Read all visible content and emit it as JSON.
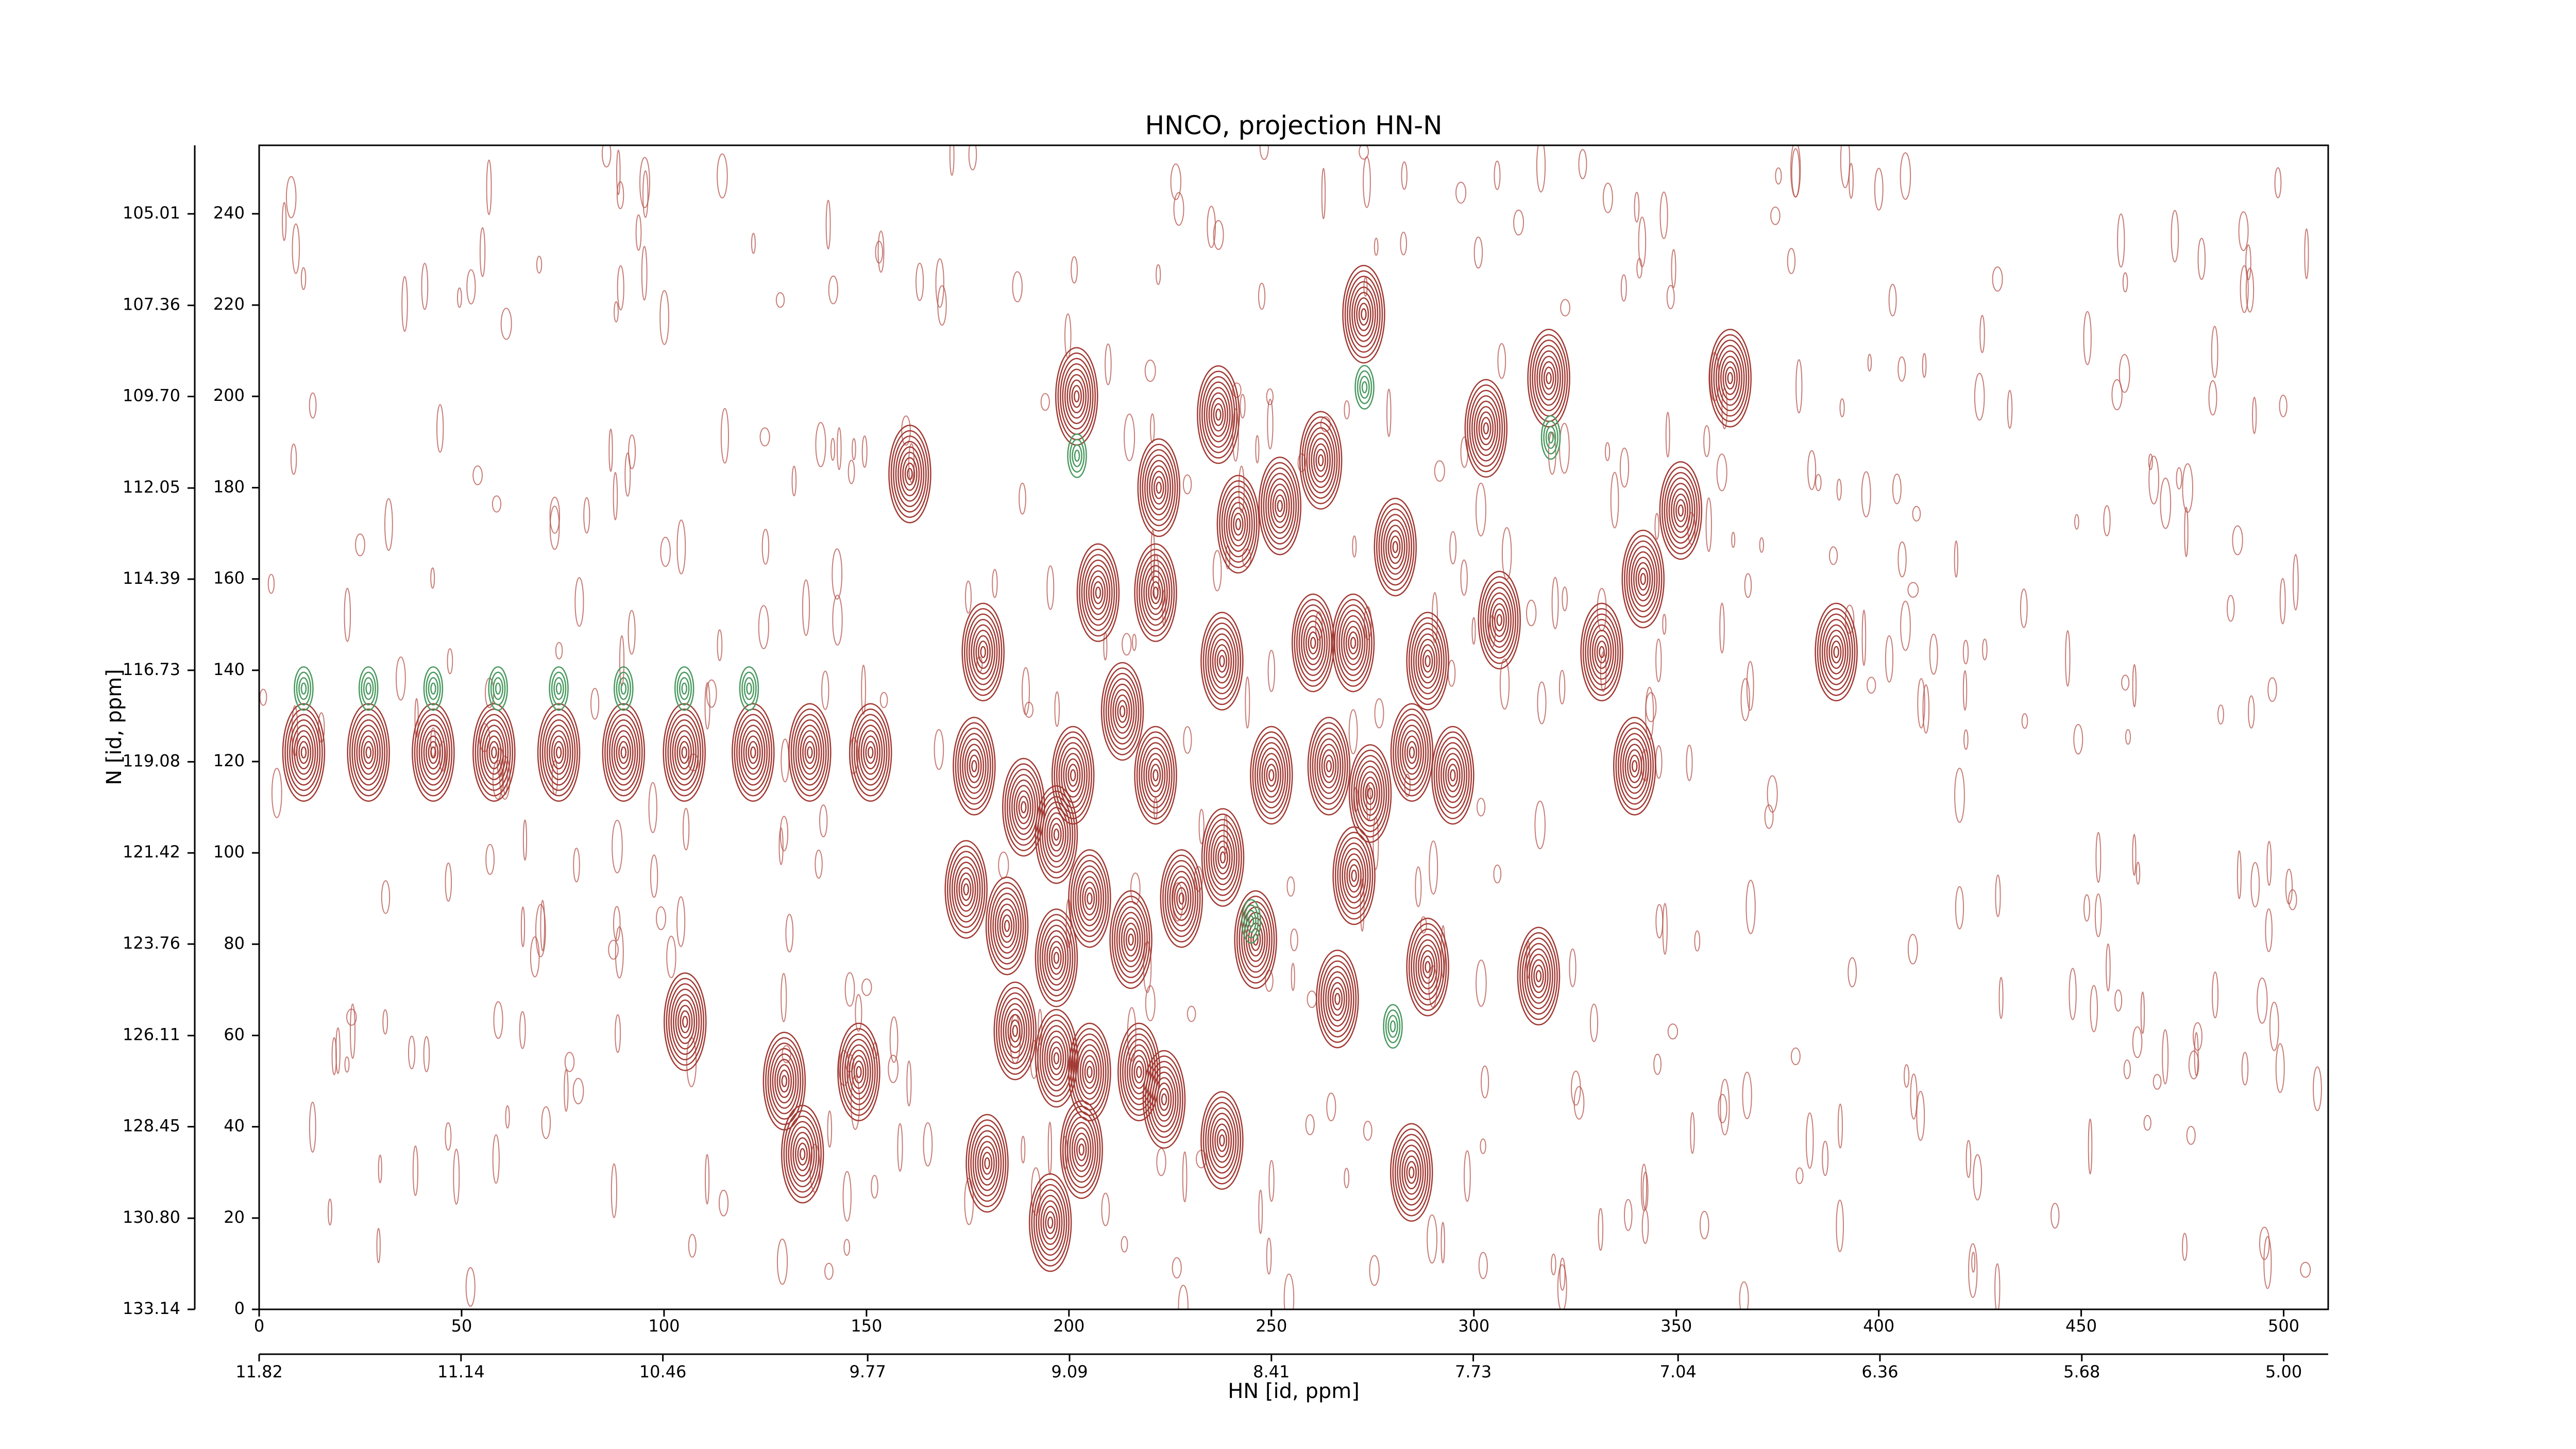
{
  "chart_data": {
    "type": "contour",
    "title": "HNCO, projection HN-N",
    "xlabel": "HN [id, ppm]",
    "ylabel": "N [id, ppm]",
    "xlim": [
      0,
      511
    ],
    "ylim": [
      0,
      255
    ],
    "xticks": [
      0,
      50,
      100,
      150,
      200,
      250,
      300,
      350,
      400,
      450,
      500
    ],
    "yticks": [
      0,
      20,
      40,
      60,
      80,
      100,
      120,
      140,
      160,
      180,
      200,
      220,
      240
    ],
    "x2lim": [
      11.82,
      4.85
    ],
    "x2ticks": [
      11.82,
      11.14,
      10.46,
      9.77,
      9.09,
      8.41,
      7.73,
      7.04,
      6.36,
      5.68,
      {
        "value": 5,
        "label": "5.00"
      }
    ],
    "y2lim": [
      133.14,
      103.25
    ],
    "y2ticks": [
      133.14,
      {
        "value": 130.8,
        "label": "130.80"
      },
      128.45,
      126.11,
      123.76,
      121.42,
      119.08,
      116.73,
      114.39,
      112.05,
      {
        "value": 109.7,
        "label": "109.70"
      },
      107.36,
      105.01
    ],
    "series": [
      {
        "color": "#a23a33",
        "x": [
          160.7,
          178.8,
          201.9,
          236.9,
          222.2,
          272.8,
          262.2,
          252.1,
          241.8,
          207.2,
          221.4,
          280.6,
          303,
          318.5,
          306.3,
          363.3,
          351.1,
          341.8,
          331.6,
          389.5,
          237.8,
          260.3,
          270.2,
          288.6,
          176.6,
          188.8,
          201,
          213.2,
          221.4,
          250,
          264.2,
          274.4,
          284.7,
          294.8,
          339.7,
          174.6,
          184.7,
          196.9,
          205.1,
          227.8,
          238,
          246.1,
          270.4,
          196.9,
          215.3,
          288.6,
          316,
          266.3,
          186.7,
          196.9,
          205.1,
          217.3,
          223.5,
          105.2,
          129.7,
          148.1,
          134.2,
          179.8,
          203.1,
          237.8,
          284.6,
          195.4,
          11,
          27,
          43,
          58,
          74,
          90,
          105,
          122,
          136,
          151
        ],
        "values": [
          183,
          144,
          200,
          196,
          180,
          218,
          186,
          176,
          172,
          157,
          157,
          167,
          193,
          204,
          151,
          204,
          175,
          160,
          144,
          144,
          142,
          146,
          146,
          142,
          119,
          110,
          117,
          131,
          117,
          117,
          119,
          113,
          122,
          117,
          119,
          92,
          84,
          104,
          90,
          90,
          99,
          81,
          95,
          77,
          81,
          75,
          73,
          68,
          61,
          55,
          52,
          52,
          46,
          63,
          50,
          52,
          34,
          32,
          35,
          37,
          30,
          19,
          122,
          122,
          122,
          122,
          122,
          122,
          122,
          122,
          122,
          122
        ]
      },
      {
        "color": "#4a9a60",
        "x": [
          11,
          27,
          43,
          59,
          74,
          90,
          105,
          121,
          202,
          273,
          319,
          245,
          280
        ],
        "values": [
          136,
          136,
          136,
          136,
          136,
          136,
          136,
          136,
          187,
          202,
          191,
          85,
          62
        ]
      }
    ]
  }
}
